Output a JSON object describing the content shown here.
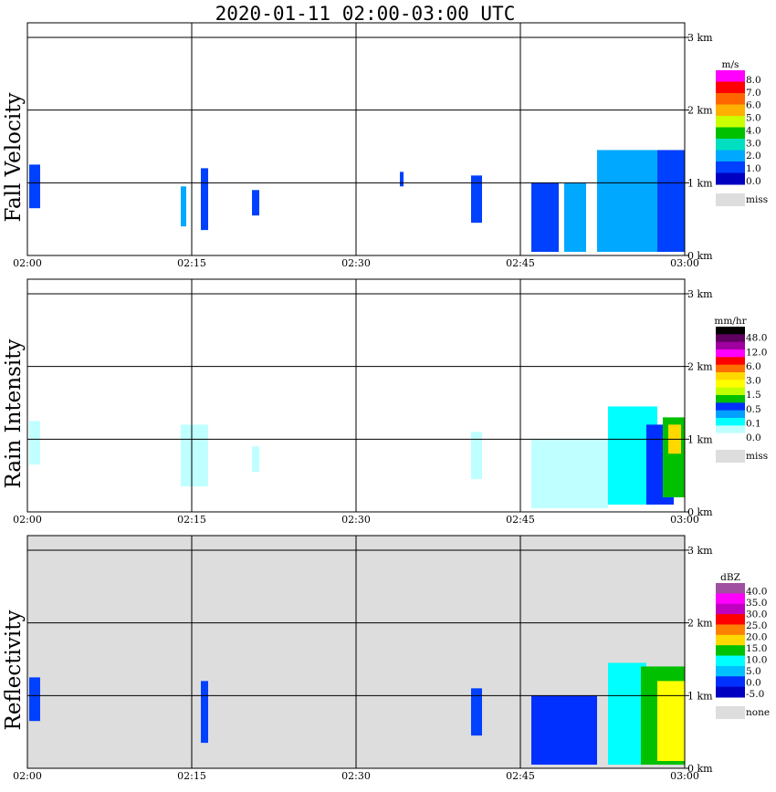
{
  "title": "2020-01-11   02:00-03:00 UTC",
  "x_ticks": [
    "02:00",
    "02:15",
    "02:30",
    "02:45",
    "03:00"
  ],
  "y_ticks": [
    "0 km",
    "1 km",
    "2 km",
    "3 km"
  ],
  "chart_data": [
    {
      "type": "heatmap",
      "ylabel": "Fall Velocity",
      "colorbar": {
        "unit": "m/s",
        "labels": [
          "8.0",
          "7.0",
          "6.0",
          "5.0",
          "4.0",
          "3.0",
          "2.0",
          "1.0",
          "0.0"
        ],
        "colors": [
          "#ff00ff",
          "#ff0000",
          "#ff6600",
          "#ffb000",
          "#ccff00",
          "#00c000",
          "#00e0c0",
          "#00a8ff",
          "#0040ff",
          "#0000c0"
        ],
        "missing_label": "miss",
        "missing_color": "#dddddd"
      },
      "features": [
        {
          "start": "02:00:10",
          "end": "02:01:10",
          "base_km": 0.65,
          "top_km": 1.25,
          "color": "#0040ff"
        },
        {
          "start": "02:14:00",
          "end": "02:14:30",
          "base_km": 0.4,
          "top_km": 0.95,
          "color": "#00a8ff"
        },
        {
          "start": "02:15:50",
          "end": "02:16:30",
          "base_km": 0.35,
          "top_km": 1.2,
          "color": "#0040ff"
        },
        {
          "start": "02:20:30",
          "end": "02:21:10",
          "base_km": 0.55,
          "top_km": 0.9,
          "color": "#0040ff"
        },
        {
          "start": "02:34:00",
          "end": "02:34:20",
          "base_km": 0.95,
          "top_km": 1.15,
          "color": "#0040ff"
        },
        {
          "start": "02:40:30",
          "end": "02:41:30",
          "base_km": 0.45,
          "top_km": 1.1,
          "color": "#0040ff"
        },
        {
          "start": "02:46:00",
          "end": "02:48:30",
          "base_km": 0.05,
          "top_km": 1.0,
          "color": "#0040ff"
        },
        {
          "start": "02:49:00",
          "end": "02:51:00",
          "base_km": 0.05,
          "top_km": 1.0,
          "color": "#00a8ff"
        },
        {
          "start": "02:52:00",
          "end": "02:57:30",
          "base_km": 0.05,
          "top_km": 1.45,
          "color": "#00a8ff"
        },
        {
          "start": "02:57:30",
          "end": "03:00:00",
          "base_km": 0.05,
          "top_km": 1.45,
          "color": "#0040ff"
        }
      ]
    },
    {
      "type": "heatmap",
      "ylabel": "Rain Intensity",
      "colorbar": {
        "unit": "mm/hr",
        "labels": [
          "48.0",
          "12.0",
          "6.0",
          "3.0",
          "1.5",
          "0.5",
          "0.1",
          "0.0"
        ],
        "colors": [
          "#000000",
          "#600060",
          "#a000a0",
          "#ff00ff",
          "#ff0000",
          "#ff7000",
          "#ffd800",
          "#ffff00",
          "#c0ff00",
          "#00c000",
          "#0030ff",
          "#00a0ff",
          "#00ffff",
          "#c0ffff",
          "#ffffff"
        ],
        "missing_label": "miss",
        "missing_color": "#dddddd"
      },
      "features": [
        {
          "start": "02:00:10",
          "end": "02:01:10",
          "base_km": 0.65,
          "top_km": 1.25,
          "color": "#c0ffff"
        },
        {
          "start": "02:14:00",
          "end": "02:16:30",
          "base_km": 0.35,
          "top_km": 1.2,
          "color": "#c0ffff"
        },
        {
          "start": "02:20:30",
          "end": "02:21:10",
          "base_km": 0.55,
          "top_km": 0.9,
          "color": "#c0ffff"
        },
        {
          "start": "02:40:30",
          "end": "02:41:30",
          "base_km": 0.45,
          "top_km": 1.1,
          "color": "#c0ffff"
        },
        {
          "start": "02:46:00",
          "end": "02:53:00",
          "base_km": 0.05,
          "top_km": 1.0,
          "color": "#c0ffff"
        },
        {
          "start": "02:53:00",
          "end": "02:57:30",
          "base_km": 0.1,
          "top_km": 1.45,
          "color": "#00ffff"
        },
        {
          "start": "02:56:30",
          "end": "02:59:00",
          "base_km": 0.1,
          "top_km": 1.2,
          "color": "#0030ff"
        },
        {
          "start": "02:58:00",
          "end": "03:00:00",
          "base_km": 0.2,
          "top_km": 1.3,
          "color": "#00c000"
        },
        {
          "start": "02:58:30",
          "end": "02:59:40",
          "base_km": 0.8,
          "top_km": 1.2,
          "color": "#ffd800"
        }
      ]
    },
    {
      "type": "heatmap",
      "ylabel": "Reflectivity",
      "colorbar": {
        "unit": "dBZ",
        "labels": [
          "40.0",
          "35.0",
          "30.0",
          "25.0",
          "20.0",
          "15.0",
          "10.0",
          "5.0",
          "0.0",
          "-5.0"
        ],
        "colors": [
          "#a050a0",
          "#ff00ff",
          "#c000c0",
          "#ff0000",
          "#ff8000",
          "#ffd800",
          "#00c000",
          "#00ffff",
          "#00c0ff",
          "#0030ff",
          "#0000c0"
        ],
        "missing_label": "none",
        "missing_color": "#dddddd"
      },
      "features": [
        {
          "start": "02:00:10",
          "end": "02:01:10",
          "base_km": 0.65,
          "top_km": 1.25,
          "color": "#0040ff"
        },
        {
          "start": "02:15:50",
          "end": "02:16:30",
          "base_km": 0.35,
          "top_km": 1.2,
          "color": "#0040ff"
        },
        {
          "start": "02:40:30",
          "end": "02:41:30",
          "base_km": 0.45,
          "top_km": 1.1,
          "color": "#0040ff"
        },
        {
          "start": "02:46:00",
          "end": "02:52:00",
          "base_km": 0.05,
          "top_km": 1.0,
          "color": "#0030ff"
        },
        {
          "start": "02:53:00",
          "end": "02:56:30",
          "base_km": 0.05,
          "top_km": 1.45,
          "color": "#00ffff"
        },
        {
          "start": "02:56:00",
          "end": "03:00:00",
          "base_km": 0.05,
          "top_km": 1.4,
          "color": "#00c000"
        },
        {
          "start": "02:57:30",
          "end": "03:00:00",
          "base_km": 0.1,
          "top_km": 1.2,
          "color": "#ffff00"
        }
      ]
    }
  ]
}
